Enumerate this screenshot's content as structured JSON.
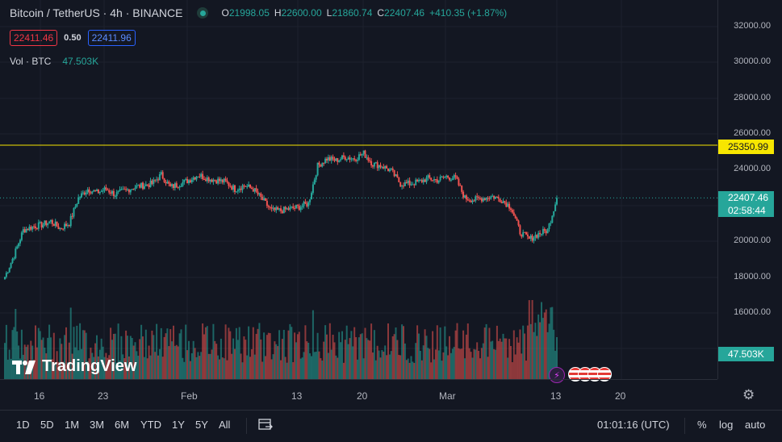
{
  "legend": {
    "symbol_title": "Bitcoin / TetherUS · 4h · BINANCE",
    "ohlc": [
      {
        "k": "O",
        "v": "21998.05"
      },
      {
        "k": "H",
        "v": "22600.00"
      },
      {
        "k": "L",
        "v": "21860.74"
      },
      {
        "k": "C",
        "v": "22407.46"
      }
    ],
    "change": "+410.35 (+1.87%)",
    "sell_price": "22411.46",
    "spread": "0.50",
    "buy_price": "22411.96",
    "volume_label": "Vol · BTC",
    "volume_value": "47.503K"
  },
  "price_scale": {
    "labels": [
      "32000.00",
      "30000.00",
      "28000.00",
      "26000.00",
      "24000.00",
      "20000.00",
      "18000.00",
      "16000.00"
    ],
    "horizontal_line_tag": "25350.99",
    "last_price_tag": "22407.46",
    "countdown_tag": "02:58:44",
    "volume_tag": "47.503K"
  },
  "time_scale": {
    "labels": [
      "16",
      "23",
      "Feb",
      "13",
      "20",
      "Mar",
      "13",
      "20"
    ]
  },
  "watermark": "TradingView",
  "bottom_bar": {
    "timeframes": [
      "1D",
      "5D",
      "1M",
      "3M",
      "6M",
      "YTD",
      "1Y",
      "5Y",
      "All"
    ],
    "clock": "01:01:16 (UTC)",
    "percent": "%",
    "log": "log",
    "auto": "auto"
  },
  "colors": {
    "up": "#26a69a",
    "down": "#ef5350",
    "horizontal_line": "#f7e600",
    "background": "#131722"
  },
  "chart_data": {
    "type": "candlestick",
    "symbol": "BTCUSDT",
    "interval": "4h",
    "ylim": [
      17000,
      33000
    ],
    "horizontal_line": 25350.99,
    "last_close": 22407.46,
    "close_path": [
      [
        "Jan 12",
        18000
      ],
      [
        "Jan 13",
        19200
      ],
      [
        "Jan 14",
        20600
      ],
      [
        "Jan 15",
        20800
      ],
      [
        "Jan 16",
        20900
      ],
      [
        "Jan 17",
        21100
      ],
      [
        "Jan 18",
        20700
      ],
      [
        "Jan 19",
        21000
      ],
      [
        "Jan 20",
        22400
      ],
      [
        "Jan 21",
        22900
      ],
      [
        "Jan 22",
        22700
      ],
      [
        "Jan 23",
        22900
      ],
      [
        "Jan 24",
        22600
      ],
      [
        "Jan 25",
        22800
      ],
      [
        "Jan 26",
        23000
      ],
      [
        "Jan 27",
        23100
      ],
      [
        "Jan 28",
        23200
      ],
      [
        "Jan 29",
        23700
      ],
      [
        "Jan 30",
        23000
      ],
      [
        "Jan 31",
        23200
      ],
      [
        "Feb 1",
        23400
      ],
      [
        "Feb 2",
        23700
      ],
      [
        "Feb 3",
        23500
      ],
      [
        "Feb 4",
        23400
      ],
      [
        "Feb 5",
        23300
      ],
      [
        "Feb 6",
        22900
      ],
      [
        "Feb 7",
        23100
      ],
      [
        "Feb 8",
        22900
      ],
      [
        "Feb 9",
        22300
      ],
      [
        "Feb 10",
        21700
      ],
      [
        "Feb 11",
        21700
      ],
      [
        "Feb 12",
        21800
      ],
      [
        "Feb 13",
        21900
      ],
      [
        "Feb 14",
        22100
      ],
      [
        "Feb 15",
        24200
      ],
      [
        "Feb 16",
        24600
      ],
      [
        "Feb 17",
        24500
      ],
      [
        "Feb 18",
        24700
      ],
      [
        "Feb 19",
        24600
      ],
      [
        "Feb 20",
        24900
      ],
      [
        "Feb 21",
        24300
      ],
      [
        "Feb 22",
        24200
      ],
      [
        "Feb 23",
        23900
      ],
      [
        "Feb 24",
        23200
      ],
      [
        "Feb 25",
        23200
      ],
      [
        "Feb 26",
        23300
      ],
      [
        "Feb 27",
        23500
      ],
      [
        "Feb 28",
        23400
      ],
      [
        "Mar 1",
        23600
      ],
      [
        "Mar 2",
        23500
      ],
      [
        "Mar 3",
        22400
      ],
      [
        "Mar 4",
        22300
      ],
      [
        "Mar 5",
        22400
      ],
      [
        "Mar 6",
        22500
      ],
      [
        "Mar 7",
        22300
      ],
      [
        "Mar 8",
        21900
      ],
      [
        "Mar 9",
        20500
      ],
      [
        "Mar 10",
        20100
      ],
      [
        "Mar 11",
        20400
      ],
      [
        "Mar 12",
        20600
      ],
      [
        "Mar 13",
        22407.46
      ]
    ],
    "volume": {
      "unit": "BTC",
      "last": 47503
    }
  }
}
